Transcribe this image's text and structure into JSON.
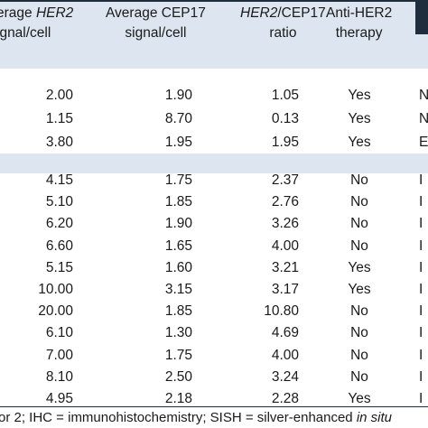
{
  "header": {
    "col1": [
      "erage ",
      "HER2",
      "ignal/cell"
    ],
    "col2": [
      "Average CEP17",
      "signal/cell"
    ],
    "col3": [
      "HER2",
      "/CEP17",
      "ratio"
    ],
    "col4": [
      "Anti-HER2",
      "therapy"
    ]
  },
  "group1": [
    {
      "her2": "2.00",
      "cep17": "1.90",
      "ratio": "1.05",
      "therapy": "Yes",
      "extra": "N"
    },
    {
      "her2": "1.15",
      "cep17": "8.70",
      "ratio": "0.13",
      "therapy": "Yes",
      "extra": "N"
    },
    {
      "her2": "3.80",
      "cep17": "1.95",
      "ratio": "1.95",
      "therapy": "Yes",
      "extra": "E"
    }
  ],
  "group2": [
    {
      "her2": "4.15",
      "cep17": "1.75",
      "ratio": "2.37",
      "therapy": "No",
      "extra": "I"
    },
    {
      "her2": "5.10",
      "cep17": "1.85",
      "ratio": "2.76",
      "therapy": "No",
      "extra": "I"
    },
    {
      "her2": "6.20",
      "cep17": "1.90",
      "ratio": "3.26",
      "therapy": "No",
      "extra": "I"
    },
    {
      "her2": "6.60",
      "cep17": "1.65",
      "ratio": "4.00",
      "therapy": "No",
      "extra": "I"
    },
    {
      "her2": "5.15",
      "cep17": "1.60",
      "ratio": "3.21",
      "therapy": "Yes",
      "extra": "I"
    },
    {
      "her2": "10.00",
      "cep17": "3.15",
      "ratio": "3.17",
      "therapy": "Yes",
      "extra": "I"
    },
    {
      "her2": "20.00",
      "cep17": "1.85",
      "ratio": "10.80",
      "therapy": "No",
      "extra": "I"
    },
    {
      "her2": "6.10",
      "cep17": "1.30",
      "ratio": "4.69",
      "therapy": "No",
      "extra": "I"
    },
    {
      "her2": "7.00",
      "cep17": "1.75",
      "ratio": "4.00",
      "therapy": "No",
      "extra": "I"
    },
    {
      "her2": "8.10",
      "cep17": "2.50",
      "ratio": "3.24",
      "therapy": "No",
      "extra": "I"
    },
    {
      "her2": "4.95",
      "cep17": "2.18",
      "ratio": "2.28",
      "therapy": "Yes",
      "extra": "I"
    }
  ],
  "footnote": {
    "text": "or 2; IHC = immunohistochemistry; SISH = silver-enhanced ",
    "italic": "in situ"
  },
  "colors": {
    "band": "#dde6f0",
    "rule": "#1f2d3d"
  }
}
